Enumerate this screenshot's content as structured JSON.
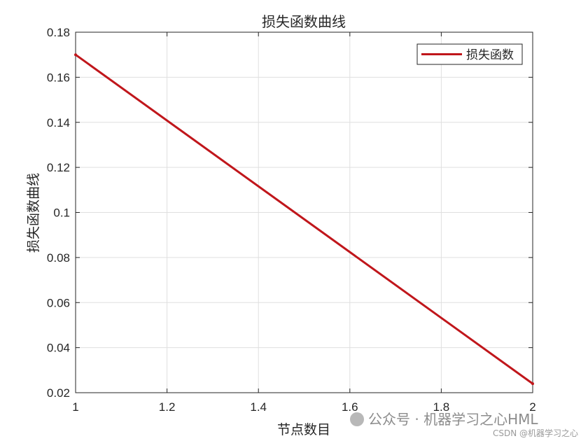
{
  "chart_data": {
    "type": "line",
    "title": "损失函数曲线",
    "xlabel": "节点数目",
    "ylabel": "损失函数曲线",
    "xlim": [
      1,
      2
    ],
    "ylim": [
      0.02,
      0.18
    ],
    "xticks": [
      1,
      1.2,
      1.4,
      1.6,
      1.8,
      2
    ],
    "xtick_labels": [
      "1",
      "1.2",
      "1.4",
      "1.6",
      "1.8",
      "2"
    ],
    "yticks": [
      0.02,
      0.04,
      0.06,
      0.08,
      0.1,
      0.12,
      0.14,
      0.16,
      0.18
    ],
    "ytick_labels": [
      "0.02",
      "0.04",
      "0.06",
      "0.08",
      "0.1",
      "0.12",
      "0.14",
      "0.16",
      "0.18"
    ],
    "grid": true,
    "legend_position": "top-right",
    "series": [
      {
        "name": "损失函数",
        "color": "#c0161b",
        "x": [
          1,
          2
        ],
        "y": [
          0.17,
          0.024
        ]
      }
    ]
  },
  "watermark": {
    "text": "公众号 · 机器学习之心HML",
    "icon": "wechat-logo-icon"
  },
  "credit": "CSDN @机器学习之心"
}
